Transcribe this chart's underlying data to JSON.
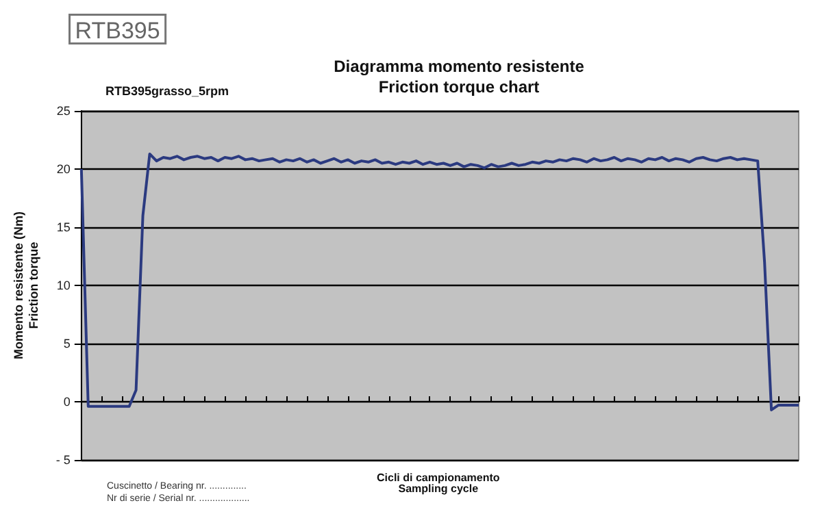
{
  "chart_data": {
    "type": "line",
    "title": "Diagramma momento resistente\nFriction torque chart",
    "subtitle": "RTB395grasso_5rpm",
    "xlabel": "Cicli di campionamento\nSampling cycle",
    "ylabel": "Momento resistente (Nm)\nFriction torque",
    "annotations": [
      "RTB395",
      "Cuscinetto / Bearing nr. ..............",
      "Nr di serie / Serial nr. ..................."
    ],
    "categories": [
      null,
      null,
      null,
      null,
      null,
      null,
      null,
      null,
      null,
      null,
      null,
      null,
      null,
      null,
      null,
      null,
      null,
      null,
      null,
      null,
      null,
      null,
      null,
      null,
      null,
      null,
      null,
      null,
      null,
      null,
      null,
      null,
      null,
      null,
      null,
      null,
      null,
      null,
      null,
      null,
      null,
      null,
      null,
      null,
      null,
      null,
      null,
      null,
      null,
      null,
      null,
      null,
      null,
      null,
      null,
      null,
      null,
      null,
      null,
      null,
      null,
      null,
      null,
      null,
      null,
      null,
      null,
      null,
      null,
      null,
      null,
      null,
      null,
      null,
      null,
      null,
      null,
      null,
      null,
      null,
      null,
      null,
      null,
      null,
      null,
      null,
      null,
      null,
      null,
      null,
      null,
      null,
      null,
      null,
      null,
      null,
      null,
      null,
      null,
      null,
      null,
      null,
      null,
      null,
      null,
      null
    ],
    "series": [
      {
        "color": "#2b3a80",
        "values": [
          20,
          -0.4,
          -0.4,
          -0.4,
          -0.4,
          -0.4,
          -0.4,
          -0.4,
          1,
          16,
          21.3,
          20.7,
          21.0,
          20.9,
          21.1,
          20.8,
          21.0,
          21.1,
          20.9,
          21.0,
          20.7,
          21.0,
          20.9,
          21.1,
          20.8,
          20.9,
          20.7,
          20.8,
          20.9,
          20.6,
          20.8,
          20.7,
          20.9,
          20.6,
          20.8,
          20.5,
          20.7,
          20.9,
          20.6,
          20.8,
          20.5,
          20.7,
          20.6,
          20.8,
          20.5,
          20.6,
          20.4,
          20.6,
          20.5,
          20.7,
          20.4,
          20.6,
          20.4,
          20.5,
          20.3,
          20.5,
          20.2,
          20.4,
          20.3,
          20.1,
          20.4,
          20.2,
          20.3,
          20.5,
          20.3,
          20.4,
          20.6,
          20.5,
          20.7,
          20.6,
          20.8,
          20.7,
          20.9,
          20.8,
          20.6,
          20.9,
          20.7,
          20.8,
          21.0,
          20.7,
          20.9,
          20.8,
          20.6,
          20.9,
          20.8,
          21.0,
          20.7,
          20.9,
          20.8,
          20.6,
          20.9,
          21.0,
          20.8,
          20.7,
          20.9,
          21.0,
          20.8,
          20.9,
          20.8,
          20.7,
          12,
          -0.7,
          -0.3,
          -0.3,
          -0.3,
          -0.3
        ]
      }
    ],
    "ylim": [
      -5,
      25
    ],
    "yticks": [
      {
        "value": -5,
        "label": "- 5"
      },
      0,
      5,
      10,
      15,
      20,
      25
    ],
    "grid": "y",
    "tick_labels": "y"
  }
}
